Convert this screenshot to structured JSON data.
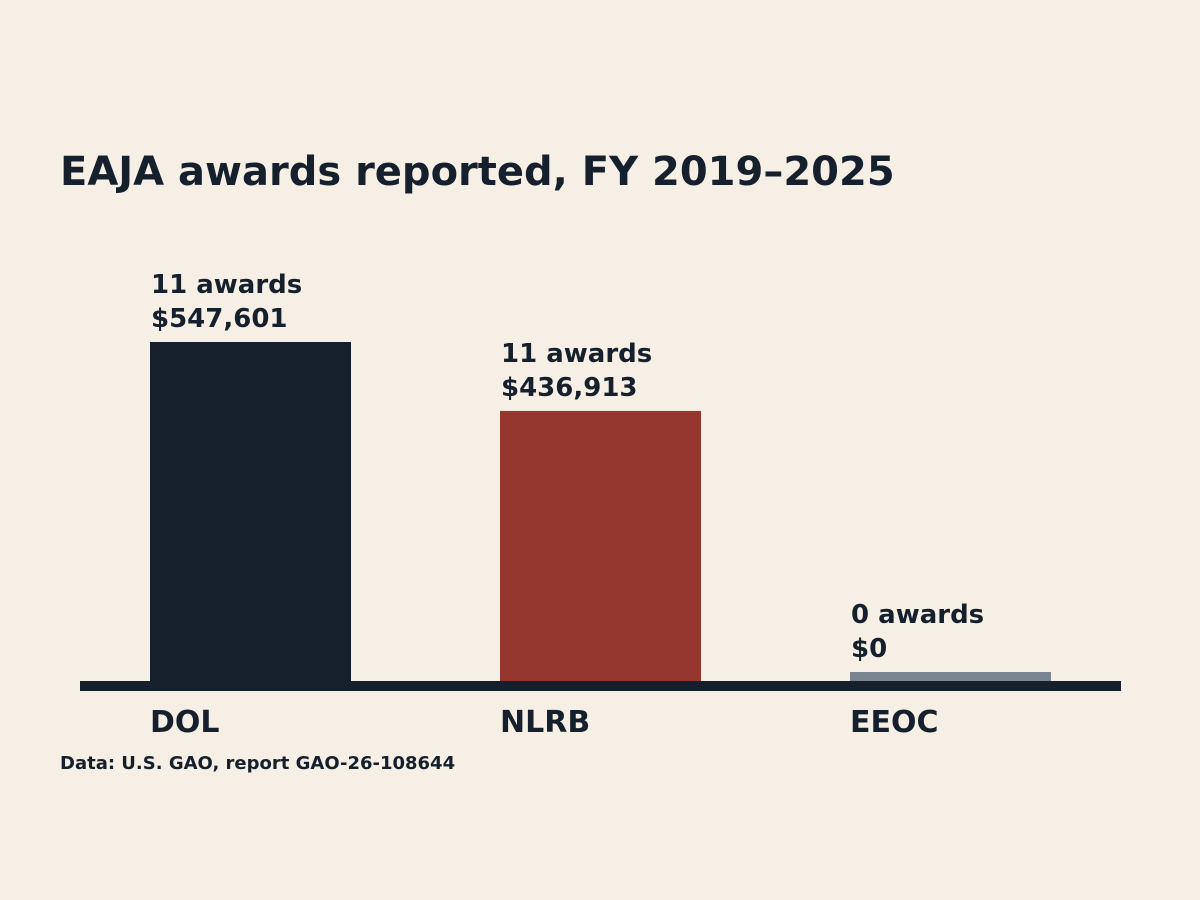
{
  "chart_data": {
    "type": "bar",
    "title": "EAJA awards reported, FY 2019–2025",
    "xlabel": "",
    "ylabel": "",
    "grid": false,
    "categories": [
      "DOL",
      "NLRB",
      "EEOC"
    ],
    "values": [
      547601,
      436913,
      0
    ],
    "award_counts": [
      11,
      11,
      0
    ],
    "data_labels": [
      {
        "count_label": "11 awards",
        "amount_label": "$547,601"
      },
      {
        "count_label": "11 awards",
        "amount_label": "$436,913"
      },
      {
        "count_label": "0 awards",
        "amount_label": "$0"
      }
    ],
    "colors": [
      "#16202c",
      "#95372e",
      "#7a8490"
    ],
    "ylim": [
      0,
      547601
    ]
  },
  "source": "Data: U.S. GAO, report GAO-26-108644"
}
